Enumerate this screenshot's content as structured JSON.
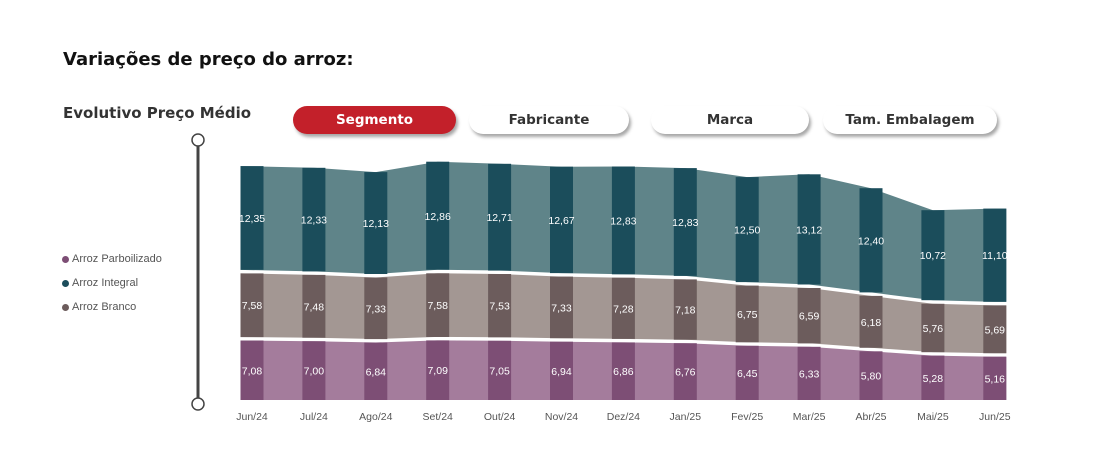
{
  "page": {
    "title": "Variações de preço do arroz:"
  },
  "toolbar": {
    "buttons": [
      {
        "label": "Segmento",
        "active": true
      },
      {
        "label": "Fabricante",
        "active": false
      },
      {
        "label": "Marca",
        "active": false
      },
      {
        "label": "Tam. Embalagem",
        "active": false
      }
    ]
  },
  "chart_data": {
    "type": "bar",
    "title": "Evolutivo Preço Médio",
    "stacked": true,
    "categories": [
      "Jun/24",
      "Jul/24",
      "Ago/24",
      "Set/24",
      "Out/24",
      "Nov/24",
      "Dez/24",
      "Jan/25",
      "Fev/25",
      "Mar/25",
      "Abr/25",
      "Mai/25",
      "Jun/25"
    ],
    "series": [
      {
        "name": "Arroz Parboilizado",
        "color": "#7d4e75",
        "ribbon_color": "#a47c9c",
        "values": [
          7.08,
          7.0,
          6.84,
          7.09,
          7.05,
          6.94,
          6.86,
          6.76,
          6.45,
          6.33,
          5.8,
          5.28,
          5.16
        ],
        "labels": [
          "7,08",
          "7,00",
          "6,84",
          "7,09",
          "7,05",
          "6,94",
          "6,86",
          "6,76",
          "6,45",
          "6,33",
          "5,80",
          "5,28",
          "5,16"
        ]
      },
      {
        "name": "Arroz Branco",
        "color": "#6c5c5c",
        "ribbon_color": "#a39793",
        "values": [
          7.58,
          7.48,
          7.33,
          7.58,
          7.53,
          7.33,
          7.28,
          7.18,
          6.75,
          6.59,
          6.18,
          5.76,
          5.69
        ],
        "labels": [
          "7,58",
          "7,48",
          "7,33",
          "7,58",
          "7,53",
          "7,33",
          "7,28",
          "7,18",
          "6,75",
          "6,59",
          "6,18",
          "5,76",
          "5,69"
        ]
      },
      {
        "name": "Arroz Integral",
        "color": "#1b4d5b",
        "ribbon_color": "#5f8489",
        "values": [
          12.35,
          12.33,
          12.13,
          12.86,
          12.71,
          12.67,
          12.83,
          12.83,
          12.5,
          13.12,
          12.4,
          10.72,
          11.1
        ],
        "labels": [
          "12,35",
          "12,33",
          "12,13",
          "12,86",
          "12,71",
          "12,67",
          "12,83",
          "12,83",
          "12,50",
          "13,12",
          "12,40",
          "10,72",
          "11,10"
        ]
      }
    ],
    "legend": {
      "position": "left",
      "entries": [
        {
          "name": "Arroz Parboilizado",
          "color": "#7d4e75"
        },
        {
          "name": "Arroz Integral",
          "color": "#1b4d5b"
        },
        {
          "name": "Arroz Branco",
          "color": "#6c5c5c"
        }
      ]
    },
    "ylim": [
      0,
      28
    ],
    "grid": false,
    "has_range_slider": true
  }
}
